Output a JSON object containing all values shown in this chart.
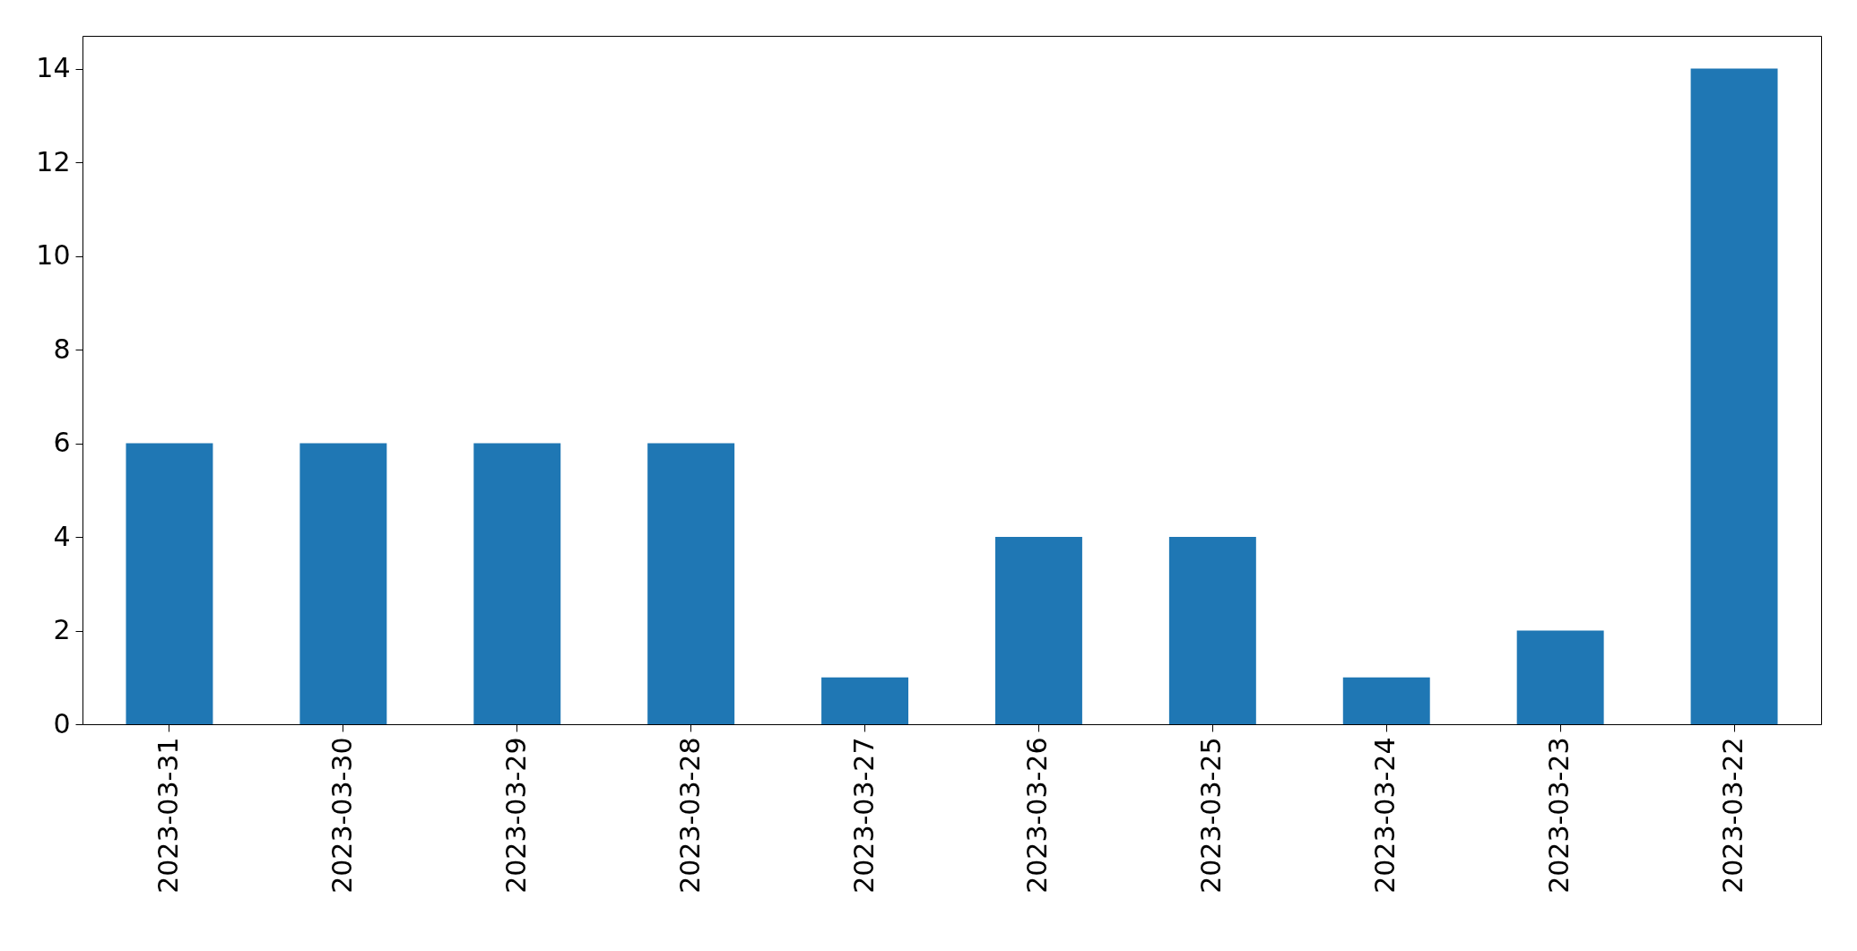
{
  "chart_data": {
    "type": "bar",
    "categories": [
      "2023-03-31",
      "2023-03-30",
      "2023-03-29",
      "2023-03-28",
      "2023-03-27",
      "2023-03-26",
      "2023-03-25",
      "2023-03-24",
      "2023-03-23",
      "2023-03-22"
    ],
    "values": [
      6,
      6,
      6,
      6,
      1,
      4,
      4,
      1,
      2,
      14
    ],
    "color": "#1f77b4",
    "ylim": [
      0,
      14.7
    ],
    "yticks": [
      0,
      2,
      4,
      6,
      8,
      10,
      12,
      14
    ],
    "grid": false
  }
}
